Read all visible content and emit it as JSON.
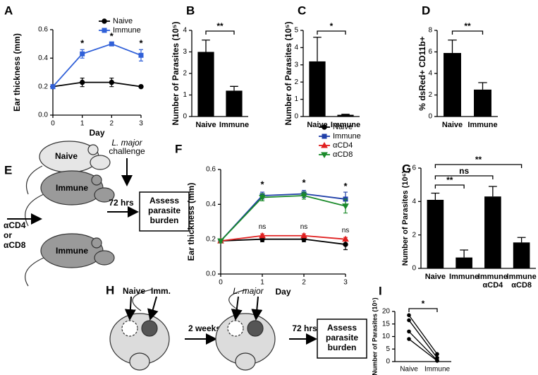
{
  "chart_data": [
    {
      "panel": "A",
      "type": "line",
      "x": [
        0,
        1,
        2,
        3
      ],
      "xlim": [
        0,
        3
      ],
      "xticks": [
        0,
        1,
        2,
        3
      ],
      "xlabel": "Day",
      "ylabel": "Ear thickness (mm)",
      "ylim": [
        0,
        0.6
      ],
      "yticks": [
        {
          "value": 0,
          "label": "0.0"
        },
        0.2,
        0.4,
        0.6
      ],
      "series": [
        {
          "name": "Naive",
          "color": "#000000",
          "marker": "circle",
          "values": [
            0.2,
            0.23,
            0.23,
            0.2
          ],
          "errors": [
            0,
            0.03,
            0.03,
            0
          ]
        },
        {
          "name": "Immune",
          "color": "#3060d8",
          "marker": "square",
          "values": [
            0.2,
            0.43,
            0.5,
            0.42
          ],
          "errors": [
            0,
            0.03,
            0.01,
            0.04
          ]
        }
      ],
      "annotations": [
        {
          "text": "*",
          "x": 1,
          "y": 0.5
        },
        {
          "text": "*",
          "x": 2,
          "y": 0.55
        },
        {
          "text": "*",
          "x": 3,
          "y": 0.5
        }
      ]
    },
    {
      "panel": "B",
      "type": "bar",
      "categories": [
        "Naive",
        "Immune"
      ],
      "values": [
        3.0,
        1.2
      ],
      "errors": [
        0.55,
        0.2
      ],
      "color": "#000000",
      "ylabel": "Number of Parasites (10⁵)",
      "ylim": [
        0,
        4
      ],
      "yticks": [
        0,
        1,
        2,
        3,
        4
      ],
      "comparisons": [
        {
          "from": 0,
          "to": 1,
          "label": "**"
        }
      ]
    },
    {
      "panel": "C",
      "type": "bar",
      "categories": [
        "Naive",
        "Immune"
      ],
      "values": [
        3.2,
        0.1
      ],
      "errors": [
        1.4,
        0.03
      ],
      "color": "#000000",
      "ylabel": "Number of Parasites (10⁵)",
      "ylim": [
        0,
        5
      ],
      "yticks": [
        0,
        1,
        2,
        3,
        4,
        5
      ],
      "comparisons": [
        {
          "from": 0,
          "to": 1,
          "label": "*"
        }
      ]
    },
    {
      "panel": "D",
      "type": "bar",
      "categories": [
        "Naive",
        "Immune"
      ],
      "values": [
        5.9,
        2.5
      ],
      "errors": [
        1.2,
        0.65
      ],
      "color": "#000000",
      "ylabel": "% dsRed+ CD11b+",
      "ylim": [
        0,
        8
      ],
      "yticks": [
        0,
        2,
        4,
        6,
        8
      ],
      "comparisons": [
        {
          "from": 0,
          "to": 1,
          "label": "**"
        }
      ]
    },
    {
      "panel": "F",
      "type": "line",
      "x": [
        0,
        1,
        2,
        3
      ],
      "xlim": [
        0,
        3
      ],
      "xticks": [
        0,
        1,
        2,
        3
      ],
      "xlabel": "Day",
      "ylabel": "Ear thickness (mm)",
      "ylim": [
        0,
        0.6
      ],
      "yticks": [
        {
          "value": 0,
          "label": "0.0"
        },
        0.2,
        0.4,
        0.6
      ],
      "series": [
        {
          "name": "Naive",
          "color": "#000000",
          "marker": "circle",
          "values": [
            0.19,
            0.2,
            0.2,
            0.17
          ],
          "errors": [
            0.01,
            0.015,
            0.015,
            0.03
          ]
        },
        {
          "name": "Immune",
          "color": "#1f3fa8",
          "marker": "square",
          "values": [
            0.19,
            0.45,
            0.46,
            0.43
          ],
          "errors": [
            0.01,
            0.02,
            0.02,
            0.04
          ]
        },
        {
          "name": "αCD4",
          "color": "#e02020",
          "marker": "triangle",
          "values": [
            0.19,
            0.22,
            0.22,
            0.2
          ],
          "errors": [
            0.01,
            0.01,
            0.01,
            0.01
          ]
        },
        {
          "name": "αCD8",
          "color": "#1a8a2a",
          "marker": "triangle-down",
          "values": [
            0.19,
            0.44,
            0.45,
            0.39
          ],
          "errors": [
            0.01,
            0.02,
            0.02,
            0.04
          ]
        }
      ],
      "annotations": [
        {
          "text": "*",
          "x": 1,
          "y": 0.51
        },
        {
          "text": "*",
          "x": 2,
          "y": 0.52
        },
        {
          "text": "*",
          "x": 3,
          "y": 0.5
        },
        {
          "text": "ns",
          "x": 1,
          "y": 0.27
        },
        {
          "text": "ns",
          "x": 2,
          "y": 0.27
        },
        {
          "text": "ns",
          "x": 3,
          "y": 0.25
        }
      ]
    },
    {
      "panel": "G",
      "type": "bar",
      "categories": [
        [
          "Naive"
        ],
        [
          "Immune"
        ],
        [
          "Immune",
          "αCD4"
        ],
        [
          "Immune",
          "αCD8"
        ]
      ],
      "values": [
        4.1,
        0.65,
        4.3,
        1.55
      ],
      "errors": [
        0.4,
        0.45,
        0.6,
        0.3
      ],
      "color": "#000000",
      "ylabel": "Number of Parasites (10⁶)",
      "ylim": [
        0,
        6
      ],
      "yticks": [
        0,
        2,
        4,
        6
      ],
      "comparisons": [
        {
          "from": 0,
          "to": 3,
          "label": "**"
        },
        {
          "from": 0,
          "to": 2,
          "label": "ns"
        },
        {
          "from": 0,
          "to": 1,
          "label": "**"
        }
      ]
    },
    {
      "panel": "I",
      "type": "paired",
      "categories": [
        "Naive",
        "Immune"
      ],
      "pairs": [
        [
          18.5,
          3
        ],
        [
          16.5,
          1.5
        ],
        [
          12,
          0.5
        ],
        [
          9,
          0.3
        ]
      ],
      "color": "#000000",
      "ylabel": "Number of Parasites (10⁵)",
      "ylim": [
        0,
        20
      ],
      "yticks": [
        0,
        5,
        10,
        15,
        20
      ],
      "comparisons": [
        {
          "from": 0,
          "to": 1,
          "label": "*"
        }
      ]
    }
  ],
  "diagrams": {
    "E": {
      "panel": "E",
      "naive": "Naive",
      "strain": "L. major",
      "challenge": "challenge",
      "immune": [
        "Immune",
        "Immune"
      ],
      "time": "72 hrs",
      "assess": [
        "Assess",
        "parasite",
        "burden"
      ],
      "depletion": [
        "αCD4",
        "or",
        "αCD8"
      ]
    },
    "H": {
      "panel": "H",
      "naive": "Naive",
      "imm": "Imm.",
      "strain": "L. major",
      "interval": "2 weeks",
      "time": "72 hrs",
      "assess": [
        "Assess",
        "parasite",
        "burden"
      ]
    }
  }
}
